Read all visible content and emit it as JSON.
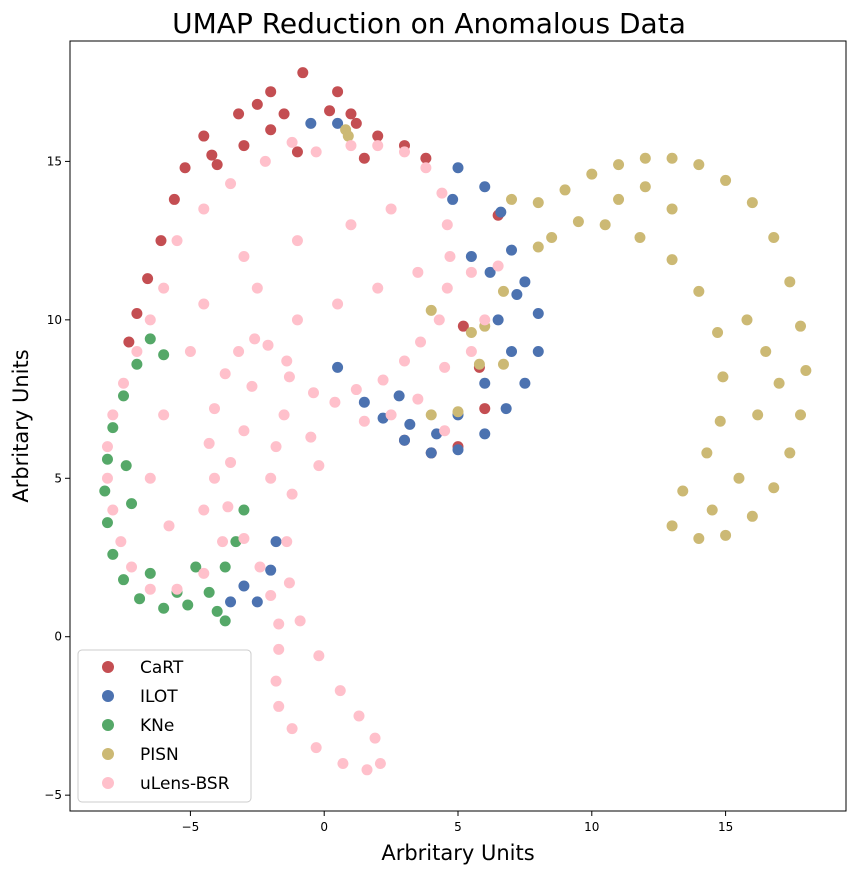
{
  "chart_data": {
    "type": "scatter",
    "title": "UMAP Reduction on Anomalous Data",
    "xlabel": "Arbritary Units",
    "ylabel": "Arbritary Units",
    "xlim": [
      -9.5,
      19.5
    ],
    "ylim": [
      -5.5,
      18.8
    ],
    "x_ticks": [
      -5,
      0,
      5,
      10,
      15
    ],
    "y_ticks": [
      -5,
      0,
      5,
      10,
      15
    ],
    "grid": false,
    "legend_position": "lower-left",
    "series": [
      {
        "name": "CaRT",
        "color": "#c44e52",
        "points": [
          [
            -0.8,
            17.8
          ],
          [
            -2,
            17.2
          ],
          [
            -3.2,
            16.5
          ],
          [
            -4.5,
            15.8
          ],
          [
            -5.2,
            14.8
          ],
          [
            -5.6,
            13.8
          ],
          [
            -6.1,
            12.5
          ],
          [
            -6.6,
            11.3
          ],
          [
            -7,
            10.2
          ],
          [
            -7.3,
            9.3
          ],
          [
            0.5,
            17.2
          ],
          [
            1.2,
            16.2
          ],
          [
            2,
            15.8
          ],
          [
            3,
            15.5
          ],
          [
            3.8,
            15.1
          ],
          [
            -1.5,
            16.5
          ],
          [
            -3,
            15.5
          ],
          [
            0.2,
            16.6
          ],
          [
            -2,
            16
          ],
          [
            -4,
            14.9
          ],
          [
            -1,
            15.3
          ],
          [
            1.5,
            15.1
          ],
          [
            5.2,
            9.8
          ],
          [
            5.8,
            8.5
          ],
          [
            6,
            7.2
          ],
          [
            5,
            6
          ],
          [
            4,
            5.8
          ],
          [
            3,
            6.2
          ],
          [
            6.5,
            13.3
          ],
          [
            1,
            16.5
          ],
          [
            -2.5,
            16.8
          ],
          [
            -4.2,
            15.2
          ]
        ]
      },
      {
        "name": "ILOT",
        "color": "#4c72b0",
        "points": [
          [
            5,
            14.8
          ],
          [
            6,
            14.2
          ],
          [
            6.6,
            13.4
          ],
          [
            7,
            12.2
          ],
          [
            7.5,
            11.2
          ],
          [
            8,
            10.2
          ],
          [
            8,
            9
          ],
          [
            7.5,
            8
          ],
          [
            6.8,
            7.2
          ],
          [
            6,
            6.4
          ],
          [
            5,
            5.9
          ],
          [
            4,
            5.8
          ],
          [
            3,
            6.2
          ],
          [
            2.2,
            6.9
          ],
          [
            1.5,
            7.4
          ],
          [
            0.5,
            8.5
          ],
          [
            0.5,
            16.2
          ],
          [
            -0.5,
            16.2
          ],
          [
            5.5,
            12
          ],
          [
            6.5,
            10
          ],
          [
            7,
            9
          ],
          [
            6,
            8
          ],
          [
            5,
            7
          ],
          [
            4.2,
            6.4
          ],
          [
            3.2,
            6.7
          ],
          [
            2.8,
            7.6
          ],
          [
            -2,
            2.1
          ],
          [
            -2.5,
            1.1
          ],
          [
            -3,
            1.6
          ],
          [
            -3.5,
            1.1
          ],
          [
            -1.8,
            3
          ],
          [
            7.2,
            10.8
          ],
          [
            6.2,
            11.5
          ],
          [
            4.8,
            13.8
          ]
        ]
      },
      {
        "name": "KNe",
        "color": "#55a868",
        "points": [
          [
            -6.5,
            9.4
          ],
          [
            -7,
            8.6
          ],
          [
            -7.5,
            7.6
          ],
          [
            -7.9,
            6.6
          ],
          [
            -8.1,
            5.6
          ],
          [
            -8.2,
            4.6
          ],
          [
            -8.1,
            3.6
          ],
          [
            -7.9,
            2.6
          ],
          [
            -7.5,
            1.8
          ],
          [
            -6.9,
            1.2
          ],
          [
            -6,
            0.9
          ],
          [
            -5.1,
            1
          ],
          [
            -4.3,
            1.4
          ],
          [
            -3.7,
            2.2
          ],
          [
            -3.3,
            3
          ],
          [
            -3,
            4
          ],
          [
            -4,
            0.8
          ],
          [
            -3.7,
            0.5
          ],
          [
            -6,
            8.9
          ],
          [
            -7.2,
            4.2
          ],
          [
            -6.5,
            2
          ],
          [
            -5.5,
            1.4
          ],
          [
            -4.8,
            2.2
          ],
          [
            -7.4,
            5.4
          ]
        ]
      },
      {
        "name": "PISN",
        "color": "#ccb974",
        "points": [
          [
            7,
            13.8
          ],
          [
            8,
            13.7
          ],
          [
            9,
            14.1
          ],
          [
            10,
            14.6
          ],
          [
            11,
            14.9
          ],
          [
            12,
            15.1
          ],
          [
            13,
            15.1
          ],
          [
            14,
            14.9
          ],
          [
            15,
            14.4
          ],
          [
            16,
            13.7
          ],
          [
            16.8,
            12.6
          ],
          [
            17.4,
            11.2
          ],
          [
            17.8,
            9.8
          ],
          [
            18,
            8.4
          ],
          [
            17.8,
            7
          ],
          [
            17.4,
            5.8
          ],
          [
            16.8,
            4.7
          ],
          [
            16,
            3.8
          ],
          [
            15,
            3.2
          ],
          [
            14,
            3.1
          ],
          [
            13,
            3.5
          ],
          [
            13.4,
            4.6
          ],
          [
            14.3,
            5.8
          ],
          [
            14.8,
            6.8
          ],
          [
            14.9,
            8.2
          ],
          [
            14.7,
            9.6
          ],
          [
            14,
            10.9
          ],
          [
            13,
            11.9
          ],
          [
            11.8,
            12.6
          ],
          [
            10.5,
            13
          ],
          [
            9.5,
            13.1
          ],
          [
            8.5,
            12.6
          ],
          [
            8,
            12.3
          ],
          [
            11,
            13.8
          ],
          [
            13,
            13.5
          ],
          [
            15.8,
            10
          ],
          [
            16.2,
            7
          ],
          [
            15.5,
            5
          ],
          [
            14.5,
            4
          ],
          [
            16.5,
            9
          ],
          [
            12,
            14.2
          ],
          [
            17,
            8
          ],
          [
            0.8,
            16
          ],
          [
            0.9,
            15.8
          ],
          [
            4,
            10.3
          ],
          [
            5.5,
            9.6
          ],
          [
            6.7,
            10.9
          ],
          [
            6.7,
            8.6
          ],
          [
            5,
            7.1
          ],
          [
            4,
            7
          ],
          [
            6,
            9.8
          ],
          [
            5.8,
            8.6
          ]
        ]
      },
      {
        "name": "uLens-BSR",
        "color": "#ffc0cb",
        "points": [
          [
            -0.3,
            15.3
          ],
          [
            1,
            15.5
          ],
          [
            2,
            15.5
          ],
          [
            3,
            15.3
          ],
          [
            3.8,
            14.8
          ],
          [
            4.4,
            14
          ],
          [
            4.6,
            13
          ],
          [
            4.7,
            12
          ],
          [
            4.6,
            11
          ],
          [
            4.3,
            10
          ],
          [
            3.6,
            9.3
          ],
          [
            3,
            8.7
          ],
          [
            2.2,
            8.1
          ],
          [
            1.2,
            7.8
          ],
          [
            0.4,
            7.4
          ],
          [
            -0.4,
            7.7
          ],
          [
            -1.4,
            8.7
          ],
          [
            -2.1,
            9.2
          ],
          [
            -2.6,
            9.4
          ],
          [
            -3.2,
            9
          ],
          [
            -3.7,
            8.3
          ],
          [
            -4.1,
            7.2
          ],
          [
            -4.3,
            6.1
          ],
          [
            -4.1,
            5
          ],
          [
            -3.6,
            4.1
          ],
          [
            -3,
            3.1
          ],
          [
            -2.4,
            2.2
          ],
          [
            -2,
            1.3
          ],
          [
            -1.7,
            0.4
          ],
          [
            -1.7,
            -0.4
          ],
          [
            -1.8,
            -1.4
          ],
          [
            -1.7,
            -2.2
          ],
          [
            -1.2,
            -2.9
          ],
          [
            -0.3,
            -3.5
          ],
          [
            0.7,
            -4
          ],
          [
            1.6,
            -4.2
          ],
          [
            2.1,
            -4
          ],
          [
            1.9,
            -3.2
          ],
          [
            1.3,
            -2.5
          ],
          [
            0.6,
            -1.7
          ],
          [
            -0.2,
            -0.6
          ],
          [
            -0.9,
            0.5
          ],
          [
            -1.3,
            1.7
          ],
          [
            -1.4,
            3
          ],
          [
            -1.2,
            4.5
          ],
          [
            -1.8,
            6
          ],
          [
            -5.5,
            12.5
          ],
          [
            -4.5,
            13.5
          ],
          [
            -3.5,
            14.3
          ],
          [
            -2.2,
            15
          ],
          [
            -1.2,
            15.6
          ],
          [
            -6,
            11
          ],
          [
            -6.5,
            10
          ],
          [
            -7,
            9
          ],
          [
            -7.5,
            8
          ],
          [
            -7.9,
            7
          ],
          [
            -8.1,
            6
          ],
          [
            -8.1,
            5
          ],
          [
            -7.9,
            4
          ],
          [
            -7.6,
            3
          ],
          [
            -7.2,
            2.2
          ],
          [
            -6.5,
            1.5
          ],
          [
            -5.5,
            1.5
          ],
          [
            -4.5,
            2
          ],
          [
            -3.8,
            3
          ],
          [
            -5,
            9
          ],
          [
            -6,
            7
          ],
          [
            -6.5,
            5
          ],
          [
            -5.8,
            3.5
          ],
          [
            -4.5,
            4
          ],
          [
            -3,
            12
          ],
          [
            -1,
            12.5
          ],
          [
            1,
            13
          ],
          [
            2.5,
            13.5
          ],
          [
            0.5,
            10.5
          ],
          [
            2,
            11
          ],
          [
            3.5,
            11.5
          ],
          [
            -1,
            10
          ],
          [
            -2.5,
            11
          ],
          [
            -3,
            6.5
          ],
          [
            -2,
            5
          ],
          [
            -1.5,
            7
          ],
          [
            -4.5,
            10.5
          ],
          [
            -3.5,
            5.5
          ],
          [
            5.5,
            11.5
          ],
          [
            6,
            10
          ],
          [
            5.5,
            9
          ],
          [
            4.5,
            8.5
          ],
          [
            3.5,
            7.5
          ],
          [
            2.5,
            7
          ],
          [
            1.5,
            6.8
          ],
          [
            4.5,
            6.5
          ],
          [
            6.5,
            11.7
          ],
          [
            -0.5,
            6.3
          ],
          [
            -0.2,
            5.4
          ],
          [
            -1.3,
            8.2
          ],
          [
            -2.7,
            7.9
          ]
        ]
      }
    ]
  }
}
